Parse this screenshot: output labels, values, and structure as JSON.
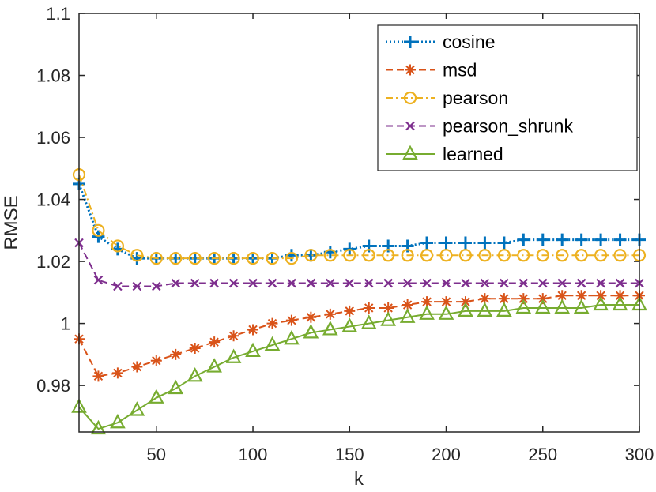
{
  "chart_data": {
    "type": "line",
    "title": "",
    "xlabel": "k",
    "ylabel": "RMSE",
    "xlim": [
      10,
      300
    ],
    "ylim": [
      0.965,
      1.1
    ],
    "xticks": [
      50,
      100,
      150,
      200,
      250,
      300
    ],
    "xtick_labels": [
      "50",
      "100",
      "150",
      "200",
      "250",
      "300"
    ],
    "yticks": [
      0.98,
      1.0,
      1.02,
      1.04,
      1.06,
      1.08,
      1.1
    ],
    "ytick_labels": [
      "0.98",
      "1",
      "1.02",
      "1.04",
      "1.06",
      "1.08",
      "1.1"
    ],
    "grid": false,
    "legend_position": "top-right",
    "x": [
      10,
      20,
      30,
      40,
      50,
      60,
      70,
      80,
      90,
      100,
      110,
      120,
      130,
      140,
      150,
      160,
      170,
      180,
      190,
      200,
      210,
      220,
      230,
      240,
      250,
      260,
      270,
      280,
      290,
      300
    ],
    "series": [
      {
        "name": "cosine",
        "color": "#0072BD",
        "marker": "plus",
        "line_style": "dotted",
        "values": [
          1.045,
          1.028,
          1.024,
          1.021,
          1.021,
          1.021,
          1.021,
          1.021,
          1.021,
          1.021,
          1.021,
          1.022,
          1.022,
          1.023,
          1.024,
          1.025,
          1.025,
          1.025,
          1.026,
          1.026,
          1.026,
          1.026,
          1.026,
          1.027,
          1.027,
          1.027,
          1.027,
          1.027,
          1.027,
          1.027
        ]
      },
      {
        "name": "msd",
        "color": "#D95319",
        "marker": "asterisk",
        "line_style": "dashed",
        "values": [
          0.995,
          0.983,
          0.984,
          0.986,
          0.988,
          0.99,
          0.992,
          0.994,
          0.996,
          0.998,
          1.0,
          1.001,
          1.002,
          1.003,
          1.004,
          1.005,
          1.005,
          1.006,
          1.007,
          1.007,
          1.007,
          1.008,
          1.008,
          1.008,
          1.008,
          1.009,
          1.009,
          1.009,
          1.009,
          1.009
        ]
      },
      {
        "name": "pearson",
        "color": "#EDB120",
        "marker": "circle",
        "line_style": "dashdot",
        "values": [
          1.048,
          1.03,
          1.025,
          1.022,
          1.021,
          1.021,
          1.021,
          1.021,
          1.021,
          1.021,
          1.021,
          1.021,
          1.022,
          1.022,
          1.022,
          1.022,
          1.022,
          1.022,
          1.022,
          1.022,
          1.022,
          1.022,
          1.022,
          1.022,
          1.022,
          1.022,
          1.022,
          1.022,
          1.022,
          1.022
        ]
      },
      {
        "name": "pearson_shrunk",
        "color": "#7E2F8E",
        "marker": "x",
        "line_style": "dashed",
        "values": [
          1.026,
          1.014,
          1.012,
          1.012,
          1.012,
          1.013,
          1.013,
          1.013,
          1.013,
          1.013,
          1.013,
          1.013,
          1.013,
          1.013,
          1.013,
          1.013,
          1.013,
          1.013,
          1.013,
          1.013,
          1.013,
          1.013,
          1.013,
          1.013,
          1.013,
          1.013,
          1.013,
          1.013,
          1.013,
          1.013
        ]
      },
      {
        "name": "learned",
        "color": "#77AC30",
        "marker": "triangle",
        "line_style": "solid",
        "values": [
          0.973,
          0.966,
          0.968,
          0.972,
          0.976,
          0.979,
          0.983,
          0.986,
          0.989,
          0.991,
          0.993,
          0.995,
          0.997,
          0.998,
          0.999,
          1.0,
          1.001,
          1.002,
          1.003,
          1.003,
          1.004,
          1.004,
          1.004,
          1.005,
          1.005,
          1.005,
          1.005,
          1.006,
          1.006,
          1.006
        ]
      }
    ]
  }
}
